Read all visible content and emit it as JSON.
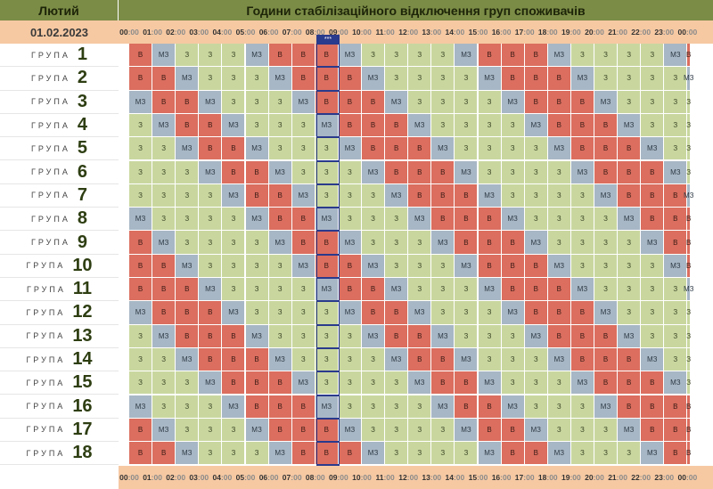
{
  "header": {
    "month": "Лютий",
    "title": "Години стабілізаційного відключення груп споживачів",
    "date": "01.02.2023"
  },
  "now_badge": "***",
  "hours": [
    "00",
    "01",
    "02",
    "03",
    "04",
    "05",
    "06",
    "07",
    "08",
    "09",
    "10",
    "11",
    "12",
    "13",
    "14",
    "15",
    "16",
    "17",
    "18",
    "19",
    "20",
    "21",
    "22",
    "23",
    "00"
  ],
  "minutes_label": "00",
  "group_word": "ГРУПА",
  "status_labels": {
    "V": "В",
    "MZ": "МЗ",
    "Z": "З"
  },
  "colors": {
    "V": "#db6e5f",
    "MZ": "#a8b7c5",
    "Z": "#c9d79f",
    "header": "#7b8c46",
    "date_band": "#f6c9a3",
    "now_marker": "#2a3a8c"
  },
  "groups": [
    {
      "num": "1",
      "cells": [
        "V",
        "MZ",
        "Z",
        "Z",
        "Z",
        "MZ",
        "V",
        "V",
        "V",
        "MZ",
        "Z",
        "Z",
        "Z",
        "Z",
        "MZ",
        "V",
        "V",
        "V",
        "MZ",
        "Z",
        "Z",
        "Z",
        "Z",
        "MZ",
        "V"
      ]
    },
    {
      "num": "2",
      "cells": [
        "V",
        "V",
        "MZ",
        "Z",
        "Z",
        "Z",
        "MZ",
        "V",
        "V",
        "V",
        "MZ",
        "Z",
        "Z",
        "Z",
        "Z",
        "MZ",
        "V",
        "V",
        "V",
        "MZ",
        "Z",
        "Z",
        "Z",
        "Z",
        "MZ"
      ]
    },
    {
      "num": "3",
      "cells": [
        "MZ",
        "V",
        "V",
        "MZ",
        "Z",
        "Z",
        "Z",
        "MZ",
        "V",
        "V",
        "V",
        "MZ",
        "Z",
        "Z",
        "Z",
        "Z",
        "MZ",
        "V",
        "V",
        "V",
        "MZ",
        "Z",
        "Z",
        "Z",
        "Z"
      ]
    },
    {
      "num": "4",
      "cells": [
        "Z",
        "MZ",
        "V",
        "V",
        "MZ",
        "Z",
        "Z",
        "Z",
        "MZ",
        "V",
        "V",
        "V",
        "MZ",
        "Z",
        "Z",
        "Z",
        "Z",
        "MZ",
        "V",
        "V",
        "V",
        "MZ",
        "Z",
        "Z",
        "Z"
      ]
    },
    {
      "num": "5",
      "cells": [
        "Z",
        "Z",
        "MZ",
        "V",
        "V",
        "MZ",
        "Z",
        "Z",
        "Z",
        "MZ",
        "V",
        "V",
        "V",
        "MZ",
        "Z",
        "Z",
        "Z",
        "Z",
        "MZ",
        "V",
        "V",
        "V",
        "MZ",
        "Z",
        "Z"
      ]
    },
    {
      "num": "6",
      "cells": [
        "Z",
        "Z",
        "Z",
        "MZ",
        "V",
        "V",
        "MZ",
        "Z",
        "Z",
        "Z",
        "MZ",
        "V",
        "V",
        "V",
        "MZ",
        "Z",
        "Z",
        "Z",
        "Z",
        "MZ",
        "V",
        "V",
        "V",
        "MZ",
        "Z"
      ]
    },
    {
      "num": "7",
      "cells": [
        "Z",
        "Z",
        "Z",
        "Z",
        "MZ",
        "V",
        "V",
        "MZ",
        "Z",
        "Z",
        "Z",
        "MZ",
        "V",
        "V",
        "V",
        "MZ",
        "Z",
        "Z",
        "Z",
        "Z",
        "MZ",
        "V",
        "V",
        "V",
        "MZ"
      ]
    },
    {
      "num": "8",
      "cells": [
        "MZ",
        "Z",
        "Z",
        "Z",
        "Z",
        "MZ",
        "V",
        "V",
        "MZ",
        "Z",
        "Z",
        "Z",
        "MZ",
        "V",
        "V",
        "V",
        "MZ",
        "Z",
        "Z",
        "Z",
        "Z",
        "MZ",
        "V",
        "V",
        "V"
      ]
    },
    {
      "num": "9",
      "cells": [
        "V",
        "MZ",
        "Z",
        "Z",
        "Z",
        "Z",
        "MZ",
        "V",
        "V",
        "MZ",
        "Z",
        "Z",
        "Z",
        "MZ",
        "V",
        "V",
        "V",
        "MZ",
        "Z",
        "Z",
        "Z",
        "Z",
        "MZ",
        "V",
        "V"
      ]
    },
    {
      "num": "10",
      "cells": [
        "V",
        "V",
        "MZ",
        "Z",
        "Z",
        "Z",
        "Z",
        "MZ",
        "V",
        "V",
        "MZ",
        "Z",
        "Z",
        "Z",
        "MZ",
        "V",
        "V",
        "V",
        "MZ",
        "Z",
        "Z",
        "Z",
        "Z",
        "MZ",
        "V"
      ]
    },
    {
      "num": "11",
      "cells": [
        "V",
        "V",
        "V",
        "MZ",
        "Z",
        "Z",
        "Z",
        "Z",
        "MZ",
        "V",
        "V",
        "MZ",
        "Z",
        "Z",
        "Z",
        "MZ",
        "V",
        "V",
        "V",
        "MZ",
        "Z",
        "Z",
        "Z",
        "Z",
        "MZ"
      ]
    },
    {
      "num": "12",
      "cells": [
        "MZ",
        "V",
        "V",
        "V",
        "MZ",
        "Z",
        "Z",
        "Z",
        "Z",
        "MZ",
        "V",
        "V",
        "MZ",
        "Z",
        "Z",
        "Z",
        "MZ",
        "V",
        "V",
        "V",
        "MZ",
        "Z",
        "Z",
        "Z",
        "Z"
      ]
    },
    {
      "num": "13",
      "cells": [
        "Z",
        "MZ",
        "V",
        "V",
        "V",
        "MZ",
        "Z",
        "Z",
        "Z",
        "Z",
        "MZ",
        "V",
        "V",
        "MZ",
        "Z",
        "Z",
        "Z",
        "MZ",
        "V",
        "V",
        "V",
        "MZ",
        "Z",
        "Z",
        "Z"
      ]
    },
    {
      "num": "14",
      "cells": [
        "Z",
        "Z",
        "MZ",
        "V",
        "V",
        "V",
        "MZ",
        "Z",
        "Z",
        "Z",
        "Z",
        "MZ",
        "V",
        "V",
        "MZ",
        "Z",
        "Z",
        "Z",
        "MZ",
        "V",
        "V",
        "V",
        "MZ",
        "Z",
        "Z"
      ]
    },
    {
      "num": "15",
      "cells": [
        "Z",
        "Z",
        "Z",
        "MZ",
        "V",
        "V",
        "V",
        "MZ",
        "Z",
        "Z",
        "Z",
        "Z",
        "MZ",
        "V",
        "V",
        "MZ",
        "Z",
        "Z",
        "Z",
        "MZ",
        "V",
        "V",
        "V",
        "MZ",
        "Z"
      ]
    },
    {
      "num": "16",
      "cells": [
        "MZ",
        "Z",
        "Z",
        "Z",
        "MZ",
        "V",
        "V",
        "V",
        "MZ",
        "Z",
        "Z",
        "Z",
        "Z",
        "MZ",
        "V",
        "V",
        "MZ",
        "Z",
        "Z",
        "Z",
        "MZ",
        "V",
        "V",
        "V",
        "V"
      ]
    },
    {
      "num": "17",
      "cells": [
        "V",
        "MZ",
        "Z",
        "Z",
        "Z",
        "MZ",
        "V",
        "V",
        "V",
        "MZ",
        "Z",
        "Z",
        "Z",
        "Z",
        "MZ",
        "V",
        "V",
        "MZ",
        "Z",
        "Z",
        "Z",
        "MZ",
        "V",
        "V",
        "V"
      ]
    },
    {
      "num": "18",
      "cells": [
        "V",
        "V",
        "MZ",
        "Z",
        "Z",
        "Z",
        "MZ",
        "V",
        "V",
        "V",
        "MZ",
        "Z",
        "Z",
        "Z",
        "Z",
        "MZ",
        "V",
        "V",
        "MZ",
        "Z",
        "Z",
        "Z",
        "MZ",
        "V",
        "V"
      ]
    }
  ]
}
